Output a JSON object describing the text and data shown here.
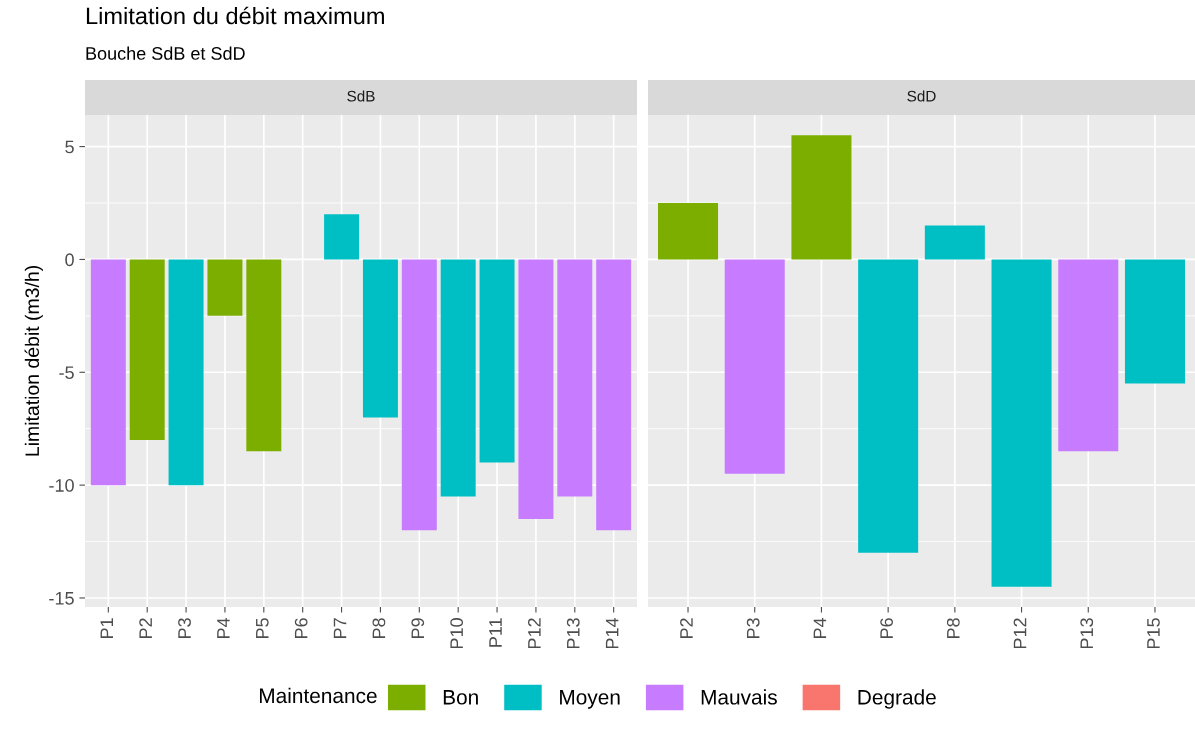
{
  "chart_data": [
    {
      "type": "bar",
      "title": "SdB",
      "annotations": [
        "Limitation du débit maximum",
        "Bouche SdB et SdD"
      ],
      "ylabel": "Limitation débit (m3/h)",
      "legend_title": "Maintenance",
      "legend": "bottom",
      "grid": true,
      "categories": [
        "P1",
        "P2",
        "P3",
        "P4",
        "P5",
        "P6",
        "P7",
        "P8",
        "P9",
        "P10",
        "P11",
        "P12",
        "P13",
        "P14"
      ],
      "series": [
        {
          "name": "Bon",
          "color": "#7cae00",
          "values": [
            null,
            -8,
            null,
            -2.5,
            -8.5,
            null,
            null,
            null,
            null,
            null,
            null,
            null,
            null,
            null
          ]
        },
        {
          "name": "Moyen",
          "color": "#00bfc4",
          "values": [
            null,
            null,
            -10,
            null,
            null,
            null,
            2,
            -7,
            null,
            -10.5,
            -9,
            null,
            null,
            null
          ]
        },
        {
          "name": "Mauvais",
          "color": "#c77cff",
          "values": [
            -10,
            null,
            null,
            null,
            null,
            null,
            null,
            null,
            -12,
            null,
            null,
            -11.5,
            -10.5,
            -12
          ]
        },
        {
          "name": "Degrade",
          "color": "#f8766d",
          "values": [
            null,
            null,
            null,
            null,
            null,
            null,
            null,
            null,
            null,
            null,
            null,
            null,
            null,
            null
          ]
        }
      ],
      "ylim": [
        -15.4,
        6.4
      ],
      "yticks": [
        -15,
        -10,
        -5,
        0,
        5
      ]
    },
    {
      "type": "bar",
      "title": "SdD",
      "grid": true,
      "tick_labels": "x",
      "categories": [
        "P2",
        "P3",
        "P4",
        "P6",
        "P8",
        "P12",
        "P13",
        "P15"
      ],
      "series": [
        {
          "color": "#7cae00",
          "values": [
            2.5,
            null,
            5.5,
            null,
            null,
            null,
            null,
            null
          ]
        },
        {
          "color": "#00bfc4",
          "values": [
            null,
            null,
            null,
            -13,
            1.5,
            -14.5,
            null,
            -5.5
          ]
        },
        {
          "color": "#c77cff",
          "values": [
            null,
            -9.5,
            null,
            null,
            null,
            null,
            -8.5,
            null
          ]
        }
      ],
      "ylim": [
        -15.4,
        6.4
      ],
      "yticks": [
        -15,
        -10,
        -5,
        0,
        5
      ]
    }
  ]
}
